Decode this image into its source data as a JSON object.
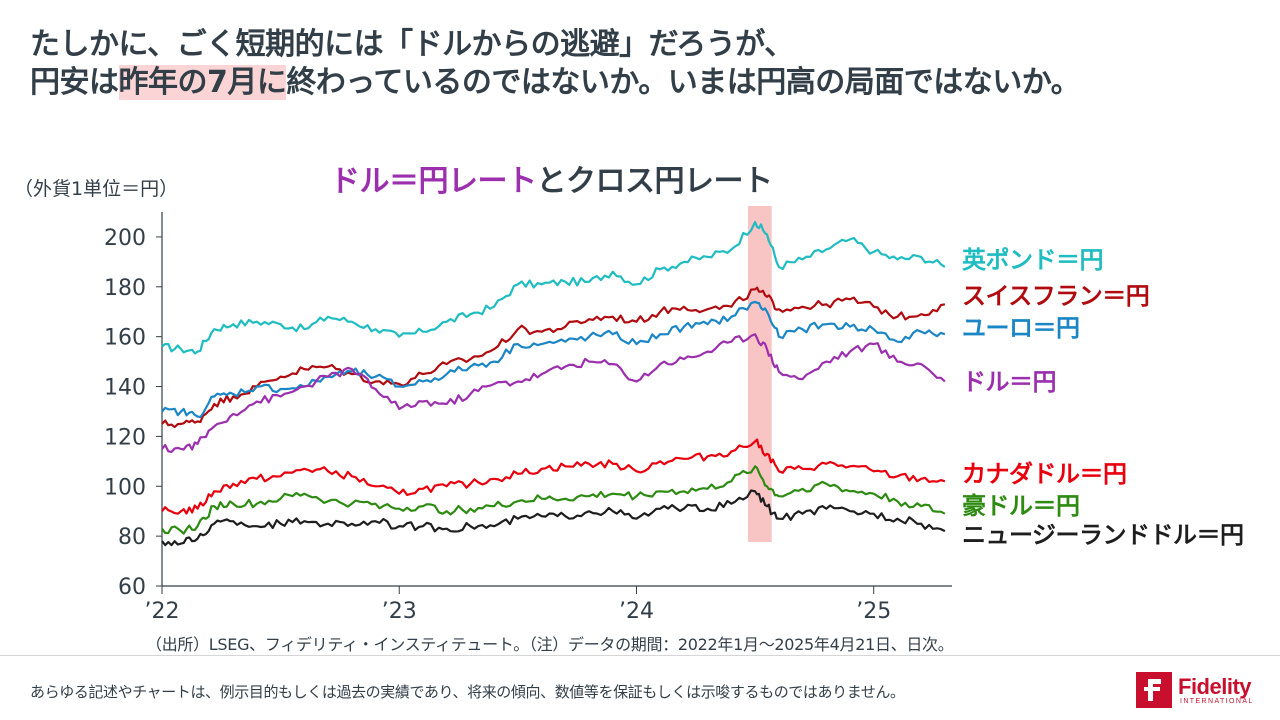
{
  "headline": {
    "line1": "たしかに、ごく短期的には「ドルからの逃避」だろうが、",
    "line2_a": "円安は",
    "line2_hl": "昨年の7月に",
    "line2_b": "終わっているのではないか。いまは円高の局面ではないか。"
  },
  "chart_data": {
    "type": "line",
    "title_part1": "ドル＝円レート",
    "title_part2": "とクロス円レート",
    "ylabel": "（外貨1単位＝円）",
    "ylim": [
      60,
      210
    ],
    "yticks": [
      "60",
      "80",
      "100",
      "120",
      "140",
      "160",
      "180",
      "200"
    ],
    "xticks": [
      "’22",
      "’23",
      "’24",
      "’25"
    ],
    "xrange": [
      2022.0,
      2025.33
    ],
    "highlight_band": [
      2024.47,
      2024.57
    ],
    "highlight_color": "#f9c4c4",
    "series": [
      {
        "name": "英ポンド＝円",
        "color": "#1fbcc1",
        "x": [
          2022.0,
          2022.08,
          2022.15,
          2022.22,
          2022.3,
          2022.4,
          2022.5,
          2022.6,
          2022.7,
          2022.8,
          2022.9,
          2023.0,
          2023.1,
          2023.2,
          2023.3,
          2023.4,
          2023.5,
          2023.6,
          2023.7,
          2023.8,
          2023.9,
          2024.0,
          2024.1,
          2024.2,
          2024.3,
          2024.4,
          2024.5,
          2024.55,
          2024.6,
          2024.7,
          2024.8,
          2024.9,
          2025.0,
          2025.1,
          2025.2,
          2025.3
        ],
        "values": [
          156,
          155,
          154,
          163,
          165,
          166,
          165,
          163,
          168,
          166,
          163,
          160,
          162,
          166,
          169,
          172,
          181,
          181,
          182,
          182,
          186,
          181,
          187,
          190,
          192,
          195,
          206,
          201,
          188,
          191,
          195,
          199,
          194,
          191,
          192,
          188
        ]
      },
      {
        "name": "スイスフラン＝円",
        "color": "#b00b0f",
        "x": [
          2022.0,
          2022.08,
          2022.15,
          2022.22,
          2022.3,
          2022.4,
          2022.5,
          2022.6,
          2022.7,
          2022.8,
          2022.9,
          2023.0,
          2023.1,
          2023.2,
          2023.3,
          2023.4,
          2023.5,
          2023.6,
          2023.7,
          2023.8,
          2023.9,
          2024.0,
          2024.1,
          2024.2,
          2024.3,
          2024.4,
          2024.5,
          2024.55,
          2024.6,
          2024.7,
          2024.8,
          2024.9,
          2025.0,
          2025.1,
          2025.2,
          2025.3
        ],
        "values": [
          125,
          125,
          126,
          133,
          136,
          140,
          144,
          147,
          148,
          145,
          142,
          141,
          145,
          149,
          151,
          155,
          163,
          162,
          164,
          167,
          168,
          166,
          170,
          172,
          171,
          172,
          179,
          176,
          171,
          172,
          173,
          175,
          172,
          168,
          169,
          173
        ]
      },
      {
        "name": "ユーロ＝円",
        "color": "#1b86c6",
        "x": [
          2022.0,
          2022.08,
          2022.15,
          2022.22,
          2022.3,
          2022.4,
          2022.5,
          2022.6,
          2022.7,
          2022.8,
          2022.9,
          2023.0,
          2023.1,
          2023.2,
          2023.3,
          2023.4,
          2023.5,
          2023.6,
          2023.7,
          2023.8,
          2023.9,
          2024.0,
          2024.1,
          2024.2,
          2024.3,
          2024.4,
          2024.5,
          2024.55,
          2024.6,
          2024.7,
          2024.8,
          2024.9,
          2025.0,
          2025.1,
          2025.2,
          2025.3
        ],
        "values": [
          130,
          130,
          128,
          136,
          137,
          140,
          139,
          140,
          144,
          146,
          144,
          140,
          142,
          145,
          148,
          150,
          157,
          157,
          158,
          160,
          161,
          157,
          161,
          164,
          165,
          168,
          174,
          170,
          160,
          163,
          165,
          164,
          163,
          158,
          162,
          161
        ]
      },
      {
        "name": "ドル＝円",
        "color": "#9b2fae",
        "x": [
          2022.0,
          2022.08,
          2022.15,
          2022.22,
          2022.3,
          2022.4,
          2022.5,
          2022.6,
          2022.7,
          2022.8,
          2022.9,
          2023.0,
          2023.1,
          2023.2,
          2023.3,
          2023.4,
          2023.5,
          2023.6,
          2023.7,
          2023.8,
          2023.9,
          2024.0,
          2024.1,
          2024.2,
          2024.3,
          2024.4,
          2024.5,
          2024.55,
          2024.6,
          2024.7,
          2024.8,
          2024.9,
          2025.0,
          2025.1,
          2025.2,
          2025.3
        ],
        "values": [
          115,
          115,
          117,
          124,
          129,
          134,
          136,
          140,
          144,
          147,
          139,
          131,
          134,
          133,
          137,
          141,
          142,
          145,
          148,
          150,
          149,
          142,
          149,
          151,
          154,
          158,
          161,
          155,
          146,
          143,
          150,
          154,
          157,
          150,
          149,
          142
        ]
      },
      {
        "name": "カナダドル＝円",
        "color": "#e8000d",
        "x": [
          2022.0,
          2022.08,
          2022.15,
          2022.22,
          2022.3,
          2022.4,
          2022.5,
          2022.6,
          2022.7,
          2022.8,
          2022.9,
          2023.0,
          2023.1,
          2023.2,
          2023.3,
          2023.4,
          2023.5,
          2023.6,
          2023.7,
          2023.8,
          2023.9,
          2024.0,
          2024.1,
          2024.2,
          2024.3,
          2024.4,
          2024.5,
          2024.55,
          2024.6,
          2024.7,
          2024.8,
          2024.9,
          2025.0,
          2025.1,
          2025.2,
          2025.3
        ],
        "values": [
          90,
          90,
          91,
          98,
          101,
          103,
          104,
          107,
          106,
          104,
          100,
          97,
          99,
          100,
          101,
          103,
          105,
          107,
          108,
          109,
          109,
          106,
          110,
          111,
          112,
          114,
          118,
          113,
          106,
          107,
          109,
          108,
          106,
          104,
          103,
          102
        ]
      },
      {
        "name": "豪ドル＝円",
        "color": "#2e8b12",
        "x": [
          2022.0,
          2022.08,
          2022.15,
          2022.22,
          2022.3,
          2022.4,
          2022.5,
          2022.6,
          2022.7,
          2022.8,
          2022.9,
          2023.0,
          2023.1,
          2023.2,
          2023.3,
          2023.4,
          2023.5,
          2023.6,
          2023.7,
          2023.8,
          2023.9,
          2024.0,
          2024.1,
          2024.2,
          2024.3,
          2024.4,
          2024.5,
          2024.55,
          2024.6,
          2024.7,
          2024.8,
          2024.9,
          2025.0,
          2025.1,
          2025.2,
          2025.3
        ],
        "values": [
          83,
          82,
          84,
          92,
          93,
          93,
          95,
          97,
          94,
          93,
          93,
          91,
          92,
          90,
          91,
          92,
          94,
          95,
          95,
          96,
          97,
          96,
          98,
          98,
          99,
          102,
          108,
          100,
          96,
          99,
          101,
          98,
          97,
          94,
          92,
          89
        ]
      },
      {
        "name": "ニュージーランドドル＝円",
        "color": "#1e1e1e",
        "x": [
          2022.0,
          2022.08,
          2022.15,
          2022.22,
          2022.3,
          2022.4,
          2022.5,
          2022.6,
          2022.7,
          2022.8,
          2022.9,
          2023.0,
          2023.1,
          2023.2,
          2023.3,
          2023.4,
          2023.5,
          2023.6,
          2023.7,
          2023.8,
          2023.9,
          2024.0,
          2024.1,
          2024.2,
          2024.3,
          2024.4,
          2024.5,
          2024.55,
          2024.6,
          2024.7,
          2024.8,
          2024.9,
          2025.0,
          2025.1,
          2025.2,
          2025.3
        ],
        "values": [
          78,
          77,
          79,
          85,
          86,
          84,
          85,
          86,
          85,
          85,
          86,
          84,
          84,
          83,
          84,
          84,
          87,
          88,
          88,
          90,
          90,
          87,
          91,
          91,
          91,
          93,
          98,
          92,
          87,
          89,
          91,
          90,
          89,
          87,
          85,
          82
        ]
      }
    ]
  },
  "source_note": "（出所）LSEG、フィデリティ・インスティテュート。（注）データの期間：2022年1月～2025年4月21日、日次。",
  "disclaimer": "あらゆる記述やチャートは、例示目的もしくは過去の実績であり、将来の傾向、数値等を保証もしくは示唆するものではありません。",
  "logo": {
    "name": "Fidelity",
    "sub": "INTERNATIONAL",
    "color": "#c8102e"
  }
}
